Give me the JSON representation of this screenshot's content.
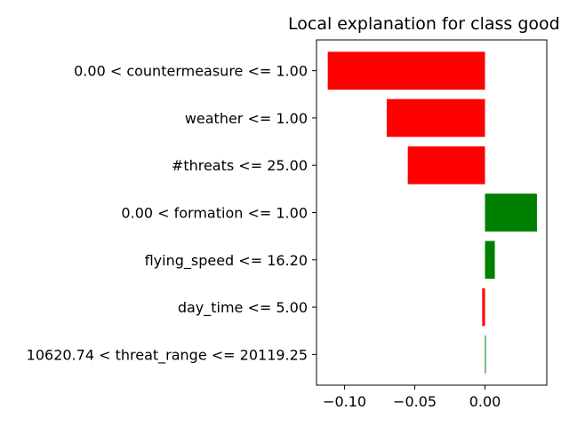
{
  "chart_data": {
    "type": "bar",
    "orientation": "horizontal",
    "title": "Local explanation for class good",
    "xlabel": "",
    "ylabel": "",
    "categories": [
      "0.00 < countermeasure <= 1.00",
      "weather <= 1.00",
      "#threats <= 25.00",
      "0.00 < formation <= 1.00",
      "flying_speed <= 16.20",
      "day_time <= 5.00",
      "10620.74 < threat_range <= 20119.25"
    ],
    "values": [
      -0.112,
      -0.07,
      -0.055,
      0.037,
      0.007,
      -0.002,
      0.0003
    ],
    "xlim": [
      -0.12,
      0.044
    ],
    "xticks": [
      -0.1,
      -0.05,
      0.0
    ],
    "xtick_labels": [
      "−0.10",
      "−0.05",
      "0.00"
    ],
    "grid": false,
    "legend": "none",
    "colors": {
      "positive": "#008000",
      "negative": "#ff0000",
      "axis": "#000000"
    }
  }
}
